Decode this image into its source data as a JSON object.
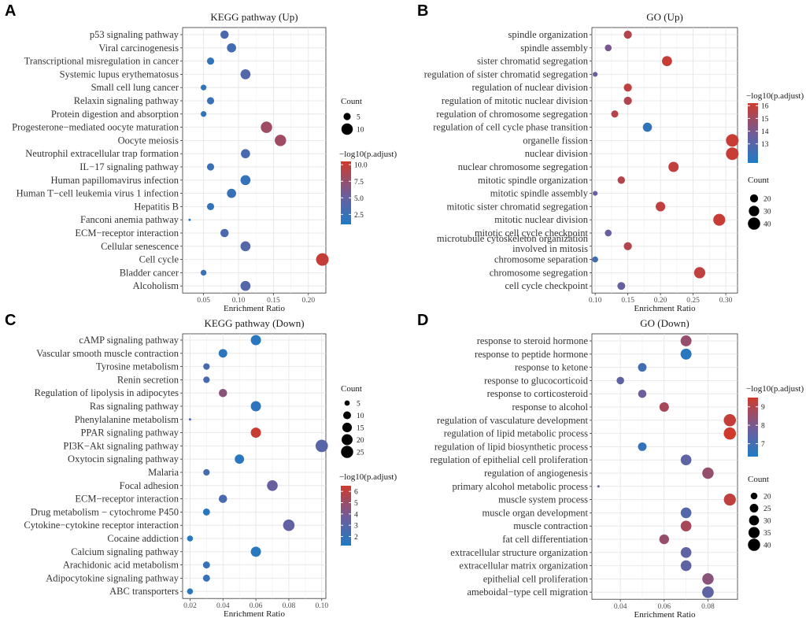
{
  "figure": {
    "type": "dotplot_panels"
  },
  "chart_data": [
    {
      "type": "scatter",
      "panel": "A",
      "title": "KEGG pathway (Up)",
      "xlabel": "Enrichment Ratio",
      "xlim": [
        0.02,
        0.225
      ],
      "xticks": [
        0.05,
        0.1,
        0.15,
        0.2
      ],
      "xtick_labels": [
        "0.05",
        "0.10",
        "0.15",
        "0.20"
      ],
      "size_title": "Count",
      "size_levels": [
        5,
        10
      ],
      "size_range": [
        3,
        12
      ],
      "color_title": "−log10(p.adjust)",
      "color_range": [
        1,
        10.5
      ],
      "color_ticks": [
        2.5,
        5,
        7.5,
        10
      ],
      "color_tick_labels": [
        "2.5",
        "5.0",
        "7.5",
        "10.0"
      ],
      "terms": [
        "p53 signaling pathway",
        "Viral carcinogenesis",
        "Transcriptional misregulation in cancer",
        "Systemic lupus erythematosus",
        "Small cell lung cancer",
        "Relaxin signaling pathway",
        "Protein digestion and absorption",
        "Progesterone−mediated oocyte maturation",
        "Oocyte meiosis",
        "Neutrophil extracellular trap formation",
        "IL−17 signaling pathway",
        "Human papillomavirus infection",
        "Human T−cell leukemia virus 1 infection",
        "Hepatitis B",
        "Fanconi anemia pathway",
        "ECM−receptor interaction",
        "Cellular senescence",
        "Cell cycle",
        "Bladder cancer",
        "Alcoholism"
      ],
      "x": [
        0.08,
        0.09,
        0.06,
        0.11,
        0.05,
        0.06,
        0.05,
        0.14,
        0.16,
        0.11,
        0.06,
        0.11,
        0.09,
        0.06,
        0.03,
        0.08,
        0.11,
        0.22,
        0.05,
        0.11
      ],
      "count": [
        6,
        7,
        5,
        8,
        4,
        5,
        4,
        10,
        10,
        7,
        5,
        8,
        7,
        5,
        2,
        6,
        8,
        12,
        4,
        8
      ],
      "p_adjust": [
        3.5,
        3,
        2,
        4,
        1.8,
        2.5,
        1.8,
        8,
        8,
        3.5,
        2.5,
        2.2,
        2.5,
        2,
        1.5,
        3.5,
        4,
        10,
        2.5,
        4
      ]
    },
    {
      "type": "scatter",
      "panel": "B",
      "title": "GO (Up)",
      "xlabel": "Enrichment Ratio",
      "xlim": [
        0.095,
        0.318
      ],
      "xticks": [
        0.1,
        0.15,
        0.2,
        0.25,
        0.3
      ],
      "xtick_labels": [
        "0.10",
        "0.15",
        "0.20",
        "0.25",
        "0.30"
      ],
      "size_title": "Count",
      "size_levels": [
        20,
        30,
        40
      ],
      "size_range": [
        10,
        42
      ],
      "color_title": "−log10(p.adjust)",
      "color_range": [
        11.5,
        16.2
      ],
      "color_ticks": [
        13,
        14,
        15,
        16
      ],
      "color_tick_labels": [
        "13",
        "14",
        "15",
        "16"
      ],
      "terms": [
        "spindle organization",
        "spindle assembly",
        "sister chromatid segregation",
        "regulation of sister chromatid segregation",
        "regulation of nuclear division",
        "regulation of mitotic nuclear division",
        "regulation of chromosome segregation",
        "regulation of cell cycle phase transition",
        "organelle fission",
        "nuclear division",
        "nuclear chromosome segregation",
        "mitotic spindle organization",
        "mitotic spindle assembly",
        "mitotic sister chromatid segregation",
        "mitotic nuclear division",
        "mitotic cell cycle checkpoint",
        "microtubule cytoskeleton organization involved in mitosis",
        "chromosome separation",
        "chromosome segregation",
        "cell cycle checkpoint"
      ],
      "x": [
        0.15,
        0.12,
        0.21,
        0.1,
        0.15,
        0.15,
        0.13,
        0.18,
        0.31,
        0.31,
        0.22,
        0.14,
        0.1,
        0.2,
        0.29,
        0.12,
        0.15,
        0.1,
        0.26,
        0.14
      ],
      "count": [
        20,
        16,
        28,
        12,
        20,
        20,
        17,
        24,
        42,
        42,
        29,
        18,
        12,
        26,
        38,
        16,
        20,
        14,
        34,
        19
      ],
      "p_adjust": [
        15.5,
        14,
        16,
        13.5,
        15.8,
        15.5,
        15.5,
        12,
        16,
        16,
        15.8,
        15.5,
        13.5,
        15.8,
        16,
        13.5,
        15.5,
        12.5,
        15.8,
        13.5
      ]
    },
    {
      "type": "scatter",
      "panel": "C",
      "title": "KEGG pathway (Down)",
      "xlabel": "Enrichment Ratio",
      "xlim": [
        0.0155,
        0.1025
      ],
      "xticks": [
        0.02,
        0.04,
        0.06,
        0.08,
        0.1
      ],
      "xtick_labels": [
        "0.02",
        "0.04",
        "0.06",
        "0.08",
        "0.10"
      ],
      "size_title": "Count",
      "size_levels": [
        5,
        10,
        15,
        20,
        25
      ],
      "size_range": [
        3,
        27
      ],
      "color_title": "−log10(p.adjust)",
      "color_range": [
        1.2,
        6.5
      ],
      "color_ticks": [
        2,
        3,
        4,
        5,
        6
      ],
      "color_tick_labels": [
        "2",
        "3",
        "4",
        "5",
        "6"
      ],
      "terms": [
        "cAMP signaling pathway",
        "Vascular smooth muscle contraction",
        "Tyrosine metabolism",
        "Renin secretion",
        "Regulation of lipolysis in adipocytes",
        "Ras signaling pathway",
        "Phenylalanine metabolism",
        "PPAR signaling pathway",
        "PI3K−Akt signaling pathway",
        "Oxytocin signaling pathway",
        "Malaria",
        "Focal adhesion",
        "ECM−receptor interaction",
        "Drug metabolism − cytochrome P450",
        "Cytokine−cytokine receptor interaction",
        "Cocaine addiction",
        "Calcium signaling pathway",
        "Arachidonic acid metabolism",
        "Adipocytokine signaling pathway",
        "ABC transporters"
      ],
      "x": [
        0.06,
        0.04,
        0.03,
        0.03,
        0.04,
        0.06,
        0.02,
        0.06,
        0.1,
        0.05,
        0.03,
        0.07,
        0.04,
        0.03,
        0.08,
        0.02,
        0.06,
        0.03,
        0.03,
        0.02
      ],
      "count": [
        17,
        12,
        7,
        7,
        11,
        17,
        3,
        17,
        26,
        14,
        7,
        19,
        11,
        8,
        22,
        6,
        17,
        8,
        8,
        6
      ],
      "p_adjust": [
        1.5,
        1.6,
        2.5,
        2.5,
        4.5,
        1.7,
        3,
        6.3,
        3,
        1.5,
        2.5,
        3.5,
        2.5,
        1.5,
        3.3,
        1.5,
        1.5,
        2,
        2,
        1.5
      ]
    },
    {
      "type": "scatter",
      "panel": "D",
      "title": "GO (Down)",
      "xlabel": "Enrichment Ratio",
      "xlim": [
        0.027,
        0.0935
      ],
      "xticks": [
        0.04,
        0.06,
        0.08
      ],
      "xtick_labels": [
        "0.04",
        "0.06",
        "0.08"
      ],
      "size_title": "Count",
      "size_levels": [
        20,
        25,
        30,
        35,
        40
      ],
      "size_range": [
        15,
        42
      ],
      "color_title": "−log10(p.adjust)",
      "color_range": [
        6.3,
        9.5
      ],
      "color_ticks": [
        7,
        8,
        9
      ],
      "color_tick_labels": [
        "7",
        "8",
        "9"
      ],
      "terms": [
        "response to steroid hormone",
        "response to peptide hormone",
        "response to ketone",
        "response to glucocorticoid",
        "response to corticosteroid",
        "response to alcohol",
        "regulation of vasculature development",
        "regulation of lipid metabolic process",
        "regulation of lipid biosynthetic process",
        "regulation of epithelial cell proliferation",
        "regulation of angiogenesis",
        "primary alcohol metabolic process",
        "muscle system process",
        "muscle organ development",
        "muscle contraction",
        "fat cell differentiation",
        "extracellular structure organization",
        "extracellular matrix organization",
        "epithelial cell proliferation",
        "ameboidal−type cell migration"
      ],
      "x": [
        0.07,
        0.07,
        0.05,
        0.04,
        0.05,
        0.06,
        0.09,
        0.09,
        0.05,
        0.07,
        0.08,
        0.03,
        0.09,
        0.07,
        0.07,
        0.06,
        0.07,
        0.07,
        0.08,
        0.08
      ],
      "count": [
        34,
        34,
        25,
        22,
        24,
        28,
        40,
        40,
        25,
        33,
        36,
        15,
        39,
        33,
        33,
        29,
        33,
        33,
        36,
        37
      ],
      "p_adjust": [
        8.5,
        6.5,
        7,
        7.5,
        7.8,
        8.8,
        9.3,
        9.5,
        6.7,
        7.5,
        8.5,
        7.5,
        9.2,
        7.3,
        8.8,
        8.5,
        7.5,
        7.5,
        8.3,
        7.5
      ]
    }
  ]
}
